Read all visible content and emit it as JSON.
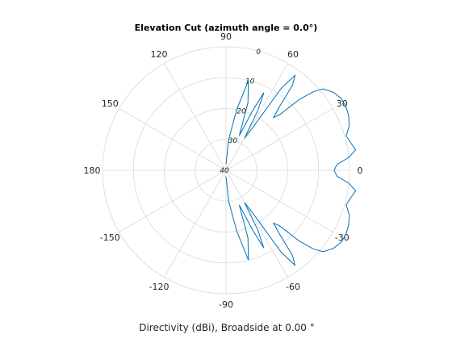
{
  "chart_data": {
    "type": "polar-line",
    "title": "Elevation Cut (azimuth angle = 0.0°)",
    "xlabel": "Directivity (dBi), Broadside at 0.00 °",
    "angle_ticks": [
      0,
      30,
      60,
      90,
      120,
      150,
      180,
      -150,
      -120,
      -90,
      -60,
      -30
    ],
    "radial_ticks": [
      0,
      10,
      20,
      30,
      40
    ],
    "radial_range": [
      -40,
      0
    ],
    "grid": true,
    "line_color": "#0072bd",
    "series": [
      {
        "angles_deg": [
          -90,
          -85,
          -80,
          -76,
          -72,
          -69,
          -66,
          -64,
          -62,
          -60,
          -58,
          -56,
          -54,
          -52,
          -50,
          -48,
          -46,
          -44,
          -42,
          -40,
          -36,
          -32,
          -28,
          -24,
          -20,
          -16,
          -12,
          -9,
          -6,
          -3,
          0,
          3,
          6,
          9,
          12,
          16,
          20,
          24,
          28,
          32,
          36,
          40,
          42,
          44,
          46,
          48,
          50,
          52,
          54,
          56,
          58,
          60,
          62,
          64,
          66,
          69,
          72,
          76,
          80,
          85,
          90
        ],
        "values_dbi": [
          -38,
          -30,
          -20,
          -10,
          -17,
          -28,
          -19,
          -12,
          -18,
          -28,
          -24,
          -8,
          -2,
          -5,
          -13,
          -17,
          -15,
          -7,
          -2,
          1,
          3,
          4,
          4,
          3.5,
          2.5,
          0.5,
          1.5,
          2.5,
          0,
          -4,
          -5,
          -4,
          0,
          2.5,
          1.5,
          0.5,
          2.5,
          3.5,
          4,
          4,
          3,
          1,
          -2,
          -7,
          -15,
          -17,
          -13,
          -5,
          -2,
          -8,
          -24,
          -28,
          -18,
          -12,
          -19,
          -28,
          -17,
          -10,
          -20,
          -30,
          -38
        ]
      }
    ]
  }
}
